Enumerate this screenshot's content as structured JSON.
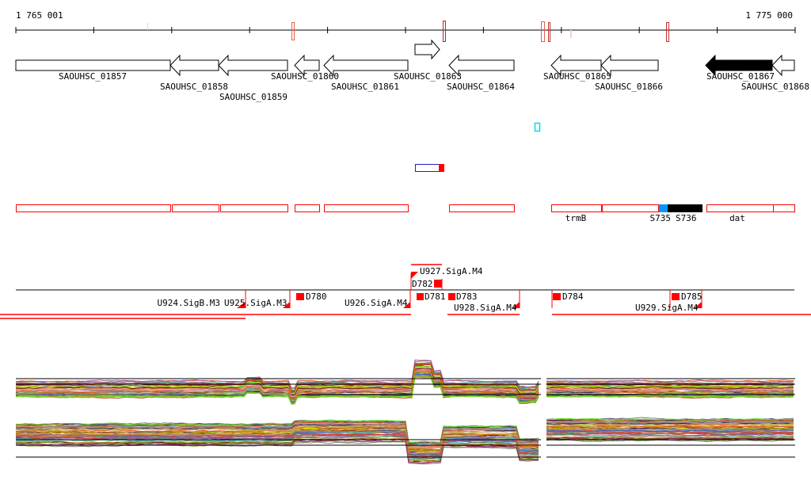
{
  "ruler": {
    "start_label": "1 765 001",
    "end_label": "1 775 000"
  },
  "genes": [
    {
      "name": "SAOUHSC_01857",
      "strand": "none",
      "filled": false
    },
    {
      "name": "SAOUHSC_01858",
      "strand": "-",
      "filled": false
    },
    {
      "name": "SAOUHSC_01859",
      "strand": "-",
      "filled": false
    },
    {
      "name": "SAOUHSC_01860",
      "strand": "-",
      "filled": false
    },
    {
      "name": "SAOUHSC_01861",
      "strand": "-",
      "filled": false
    },
    {
      "name": "SAOUHSC_01863",
      "strand": "+",
      "filled": false
    },
    {
      "name": "SAOUHSC_01864",
      "strand": "-",
      "filled": false
    },
    {
      "name": "SAOUHSC_01865",
      "strand": "-",
      "filled": false
    },
    {
      "name": "SAOUHSC_01866",
      "strand": "-",
      "filled": false
    },
    {
      "name": "SAOUHSC_01867",
      "strand": "-",
      "filled": true
    },
    {
      "name": "SAOUHSC_01868",
      "strand": "-",
      "filled": false
    }
  ],
  "annotations": {
    "trmB": "trmB",
    "s735": "S735",
    "s736": "S736",
    "dat": "dat"
  },
  "transcripts": {
    "u924": "U924.SigB.M3",
    "u925": "U925.SigA.M3",
    "u926": "U926.SigA.M4",
    "u927": "U927.SigA.M4",
    "u928": "U928.SigA.M4",
    "u929": "U929.SigA.M4",
    "d780": "D780",
    "d781": "D781",
    "d782": "D782",
    "d783": "D783",
    "d784": "D784",
    "d785": "D785"
  },
  "colors": {
    "feature": "#ff0000",
    "highlight": "#0099ff",
    "cyan": "#00e0e0",
    "gene_filled": "#000000"
  }
}
